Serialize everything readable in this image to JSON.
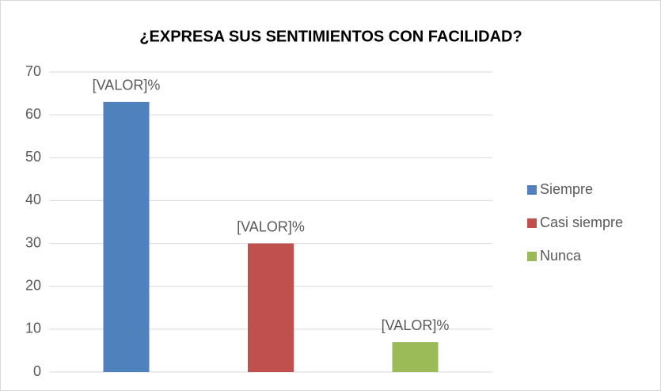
{
  "chart_data": {
    "type": "bar",
    "title": "¿EXPRESA SUS SENTIMIENTOS CON FACILIDAD?",
    "categories": [
      null
    ],
    "series": [
      {
        "name": "Siempre",
        "color": "#4f81bd",
        "values": [
          63
        ],
        "value_labels": [
          "[VALOR]%"
        ]
      },
      {
        "name": "Casi siempre",
        "color": "#c0504d",
        "values": [
          30
        ],
        "value_labels": [
          "[VALOR]%"
        ]
      },
      {
        "name": "Nunca",
        "color": "#9bbb59",
        "values": [
          7
        ],
        "value_labels": [
          "[VALOR]%"
        ]
      }
    ],
    "ylim": [
      0,
      70
    ],
    "yticks": [
      0,
      10,
      20,
      30,
      40,
      50,
      60,
      70
    ],
    "grid": true,
    "legend": "right"
  }
}
